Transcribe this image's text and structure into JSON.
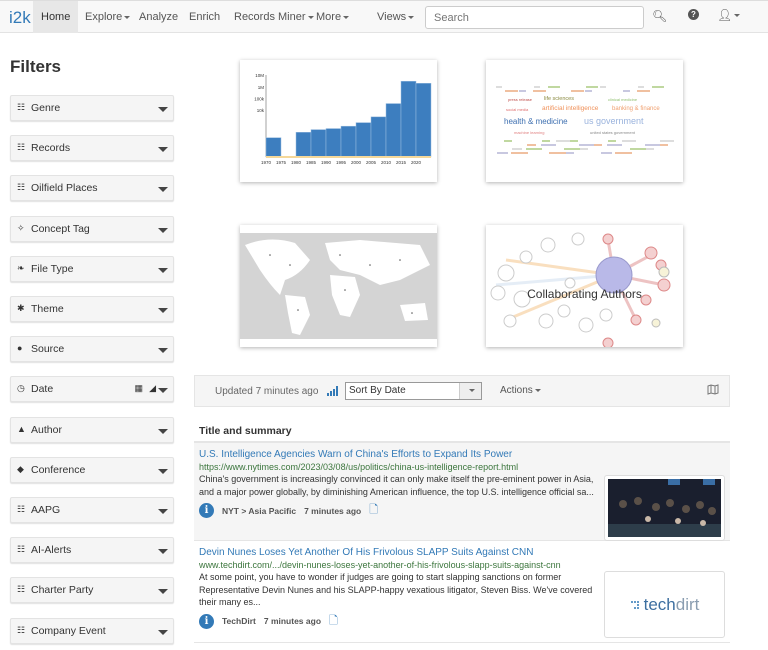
{
  "nav": {
    "brand": "i2k",
    "items": [
      {
        "label": "Home",
        "active": true
      },
      {
        "label": "Explore",
        "caret": true
      },
      {
        "label": "Analyze"
      },
      {
        "label": "Enrich"
      },
      {
        "label": "Records Miner",
        "caret": true
      },
      {
        "label": "More",
        "caret": true
      },
      {
        "label": "Views",
        "caret": true
      }
    ],
    "search_placeholder": "Search",
    "icons": [
      "search-icon",
      "help-icon",
      "user-icon"
    ]
  },
  "filters": {
    "title": "Filters",
    "items": [
      {
        "label": "Genre",
        "icon": "sitemap-icon"
      },
      {
        "label": "Records",
        "icon": "sitemap-icon"
      },
      {
        "label": "Oilfield Places",
        "icon": "sitemap-icon"
      },
      {
        "label": "Concept Tag",
        "icon": "magic-wand-icon"
      },
      {
        "label": "File Type",
        "icon": "leaf-icon"
      },
      {
        "label": "Theme",
        "icon": "asterisk-icon"
      },
      {
        "label": "Source",
        "icon": "globe-icon"
      },
      {
        "label": "Date",
        "icon": "clock-icon"
      },
      {
        "label": "Author",
        "icon": "user-icon"
      },
      {
        "label": "Conference",
        "icon": "graduation-cap-icon"
      },
      {
        "label": "AAPG",
        "icon": "sitemap-icon"
      },
      {
        "label": "AI-Alerts",
        "icon": "sitemap-icon"
      },
      {
        "label": "Charter Party",
        "icon": "sitemap-icon"
      },
      {
        "label": "Company Event",
        "icon": "sitemap-icon"
      }
    ]
  },
  "chart_data": {
    "type": "bar",
    "scale": "log",
    "categories": [
      "1970",
      "1975",
      "1980",
      "1985",
      "1990",
      "1995",
      "2000",
      "2005",
      "2010",
      "2015",
      "2020"
    ],
    "values": [
      45,
      1,
      130,
      220,
      270,
      430,
      870,
      2700,
      37000,
      3000000,
      2000000
    ],
    "yticks": [
      "10k",
      "100k",
      "1M",
      "10M"
    ],
    "color": "#3d7ebf"
  },
  "wordcloud": {
    "words": [
      {
        "text": "health & medicine",
        "color": "#3d6fb0"
      },
      {
        "text": "us government",
        "color": "#9ab3dd"
      },
      {
        "text": "artificial intelligence",
        "color": "#f0915a"
      },
      {
        "text": "banking & finance",
        "color": "#f0a070"
      },
      {
        "text": "life sciences",
        "color": "#8a8a40"
      },
      {
        "text": "press release",
        "color": "#c0504d"
      },
      {
        "text": "clinical medicine",
        "color": "#90c070"
      },
      {
        "text": "social media",
        "color": "#e07070"
      },
      {
        "text": "united states government",
        "color": "#888"
      },
      {
        "text": "machine learning",
        "color": "#e08080"
      }
    ]
  },
  "authors_panel": {
    "label": "Collaborating Authors"
  },
  "toolbar": {
    "updated": "Updated 7 minutes ago",
    "sort_value": "Sort By Date",
    "actions": "Actions"
  },
  "results": {
    "header": "Title and summary",
    "items": [
      {
        "title": "U.S. Intelligence Agencies Warn of China's Efforts to Expand Its Power",
        "url": "https://www.nytimes.com/2023/03/08/us/politics/china-us-intelligence-report.html",
        "summary": "China's government is increasingly convinced it can only make itself the pre-eminent power in Asia, and a major power globally, by diminishing American influence, the top U.S. intelligence official sa...",
        "source": "NYT > Asia Pacific",
        "time": "7 minutes ago"
      },
      {
        "title": "Devin Nunes Loses Yet Another Of His Frivolous SLAPP Suits Against CNN",
        "url": "www.techdirt.com/.../devin-nunes-loses-yet-another-of-his-frivolous-slapp-suits-against-cnn",
        "summary": "At some point, you have to wonder if judges are going to start slapping sanctions on former Representative Devin Nunes and his SLAPP-happy vexatious litigator, Steven Biss. We've covered their many es...",
        "source": "TechDirt",
        "time": "7 minutes ago",
        "thumb_logo": "techdirt"
      }
    ]
  }
}
